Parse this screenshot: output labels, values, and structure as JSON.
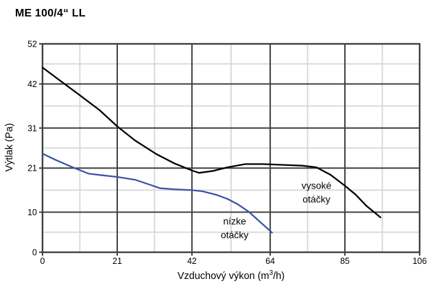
{
  "title": "ME 100/4“ LL",
  "chart_data": {
    "type": "line",
    "title": "ME 100/4“ LL",
    "xlabel": "Vzduchový výkon (m³/h)",
    "xlabel_parts": {
      "pre": "Vzduchový výkon (m",
      "sup": "3",
      "post": "/h)"
    },
    "ylabel": "Výtlak (Pa)",
    "x_ticks": [
      0,
      21,
      42,
      64,
      85,
      106
    ],
    "y_ticks": [
      0,
      10,
      21,
      31,
      42,
      52
    ],
    "xlim": [
      0,
      106
    ],
    "ylim": [
      0,
      52
    ],
    "grid": {
      "on": true,
      "major_color": "#3f3f3f",
      "minor_color": "#d6d6d6",
      "minor": "midpoints",
      "frame": true
    },
    "legend": "none (curves labeled inline)",
    "series": [
      {
        "name": "vysoké otáčky",
        "color": "#000000",
        "points": [
          [
            0,
            46.1
          ],
          [
            5,
            42.8
          ],
          [
            10,
            39.5
          ],
          [
            16,
            35.5
          ],
          [
            21,
            31.4
          ],
          [
            26,
            27.9
          ],
          [
            32,
            24.5
          ],
          [
            37,
            22.2
          ],
          [
            42,
            20.4
          ],
          [
            44,
            19.8
          ],
          [
            48,
            20.3
          ],
          [
            52,
            21.2
          ],
          [
            57,
            22.0
          ],
          [
            62,
            22.0
          ],
          [
            68,
            21.8
          ],
          [
            73,
            21.6
          ],
          [
            77,
            21.2
          ],
          [
            81,
            19.3
          ],
          [
            85,
            16.6
          ],
          [
            88,
            14.4
          ],
          [
            91,
            11.6
          ],
          [
            95,
            8.7
          ]
        ]
      },
      {
        "name": "nízke otáčky",
        "color": "#3a55a5",
        "points": [
          [
            0,
            24.6
          ],
          [
            4,
            22.9
          ],
          [
            9,
            21.0
          ],
          [
            13,
            19.6
          ],
          [
            17,
            19.2
          ],
          [
            21,
            18.8
          ],
          [
            26,
            18.1
          ],
          [
            30,
            16.9
          ],
          [
            33,
            16.0
          ],
          [
            37,
            15.7
          ],
          [
            42,
            15.5
          ],
          [
            45,
            15.2
          ],
          [
            49,
            14.3
          ],
          [
            52,
            13.3
          ],
          [
            55,
            11.9
          ],
          [
            58,
            10.1
          ],
          [
            61,
            7.7
          ],
          [
            64.5,
            4.9
          ]
        ]
      }
    ],
    "annotations": [
      {
        "lines": [
          "vysoké",
          "otáčky"
        ],
        "x": 77,
        "y": 15.0,
        "color": "#000000"
      },
      {
        "lines": [
          "nízke",
          "otáčky"
        ],
        "x": 54,
        "y": 6.1,
        "color": "#000000"
      }
    ]
  }
}
